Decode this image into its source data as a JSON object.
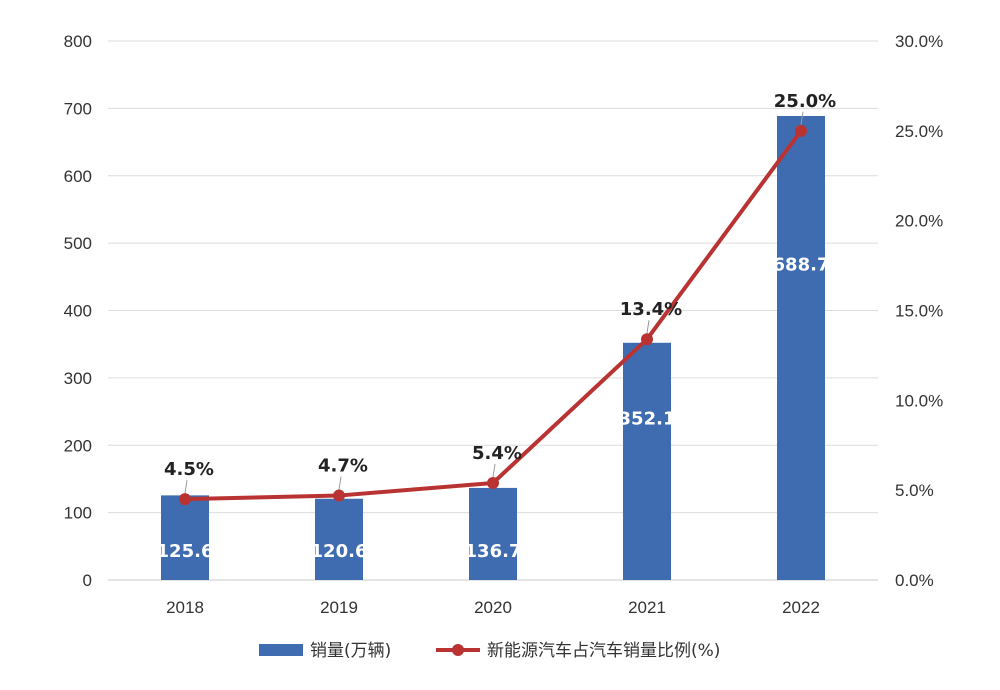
{
  "chart_data": {
    "type": "bar",
    "categories": [
      "2018",
      "2019",
      "2020",
      "2021",
      "2022"
    ],
    "series": [
      {
        "name": "销量(万辆)",
        "type": "bar",
        "axis": "left",
        "values": [
          125.6,
          120.6,
          136.7,
          352.1,
          688.7
        ],
        "labels": [
          "125.6",
          "120.6",
          "136.7",
          "352.1",
          "688.7"
        ],
        "color": "#3F6CB0"
      },
      {
        "name": "新能源汽车占汽车销量比例(%)",
        "type": "line",
        "axis": "right",
        "values": [
          4.5,
          4.7,
          5.4,
          13.4,
          25.0
        ],
        "labels": [
          "4.5%",
          "4.7%",
          "5.4%",
          "13.4%",
          "25.0%"
        ],
        "color": "#B93333"
      }
    ],
    "y_left": {
      "min": 0,
      "max": 800,
      "step": 100,
      "ticks": [
        "0",
        "100",
        "200",
        "300",
        "400",
        "500",
        "600",
        "700",
        "800"
      ]
    },
    "y_right": {
      "min": 0,
      "max": 30,
      "step": 5,
      "ticks": [
        "0.0%",
        "5.0%",
        "10.0%",
        "15.0%",
        "20.0%",
        "25.0%",
        "30.0%"
      ]
    },
    "grid": true,
    "legend_position": "bottom",
    "title": "",
    "xlabel": "",
    "ylabel": ""
  }
}
